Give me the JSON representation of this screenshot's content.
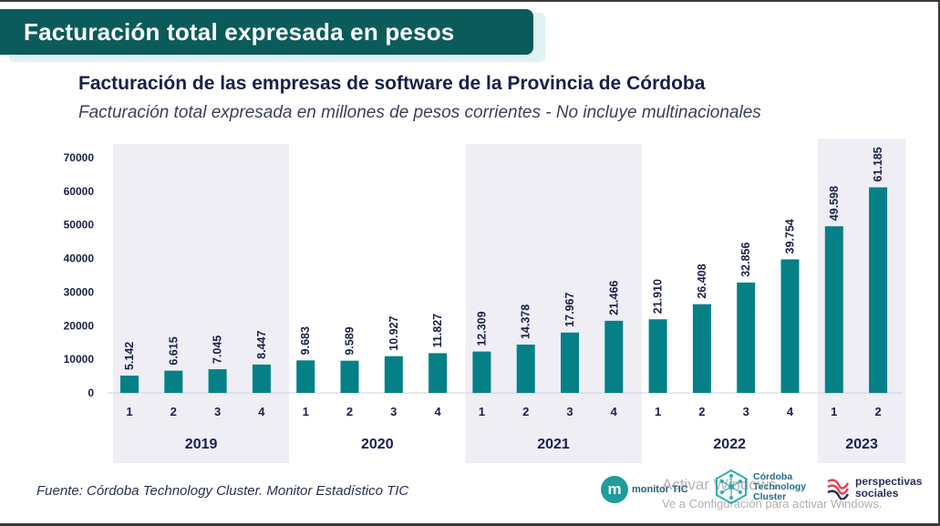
{
  "banner_title": "Facturación total expresada en pesos",
  "chart_data": {
    "type": "bar",
    "title": "Facturación de las empresas de software de la Provincia de Córdoba",
    "subtitle": "Facturación total expresada en millones de pesos corrientes - No incluye multinacionales",
    "xlabel": "",
    "ylabel": "",
    "ylim": [
      0,
      70000
    ],
    "yticks": [
      "0",
      "10000",
      "20000",
      "30000",
      "40000",
      "50000",
      "60000",
      "70000"
    ],
    "yticks_values": [
      0,
      10000,
      20000,
      30000,
      40000,
      50000,
      60000,
      70000
    ],
    "groups": [
      {
        "label": "2019",
        "shaded": true,
        "quarters": [
          "1",
          "2",
          "3",
          "4"
        ],
        "values": [
          5142,
          6615,
          7045,
          8447
        ],
        "labels": [
          "5.142",
          "6.615",
          "7.045",
          "8.447"
        ]
      },
      {
        "label": "2020",
        "shaded": false,
        "quarters": [
          "1",
          "2",
          "3",
          "4"
        ],
        "values": [
          9683,
          9589,
          10927,
          11827
        ],
        "labels": [
          "9.683",
          "9.589",
          "10.927",
          "11.827"
        ]
      },
      {
        "label": "2021",
        "shaded": true,
        "quarters": [
          "1",
          "2",
          "3",
          "4"
        ],
        "values": [
          12309,
          14378,
          17967,
          21466
        ],
        "labels": [
          "12.309",
          "14.378",
          "17.967",
          "21.466"
        ]
      },
      {
        "label": "2022",
        "shaded": false,
        "quarters": [
          "1",
          "2",
          "3",
          "4"
        ],
        "values": [
          21910,
          26408,
          32856,
          39754
        ],
        "labels": [
          "21.910",
          "26.408",
          "32.856",
          "39.754"
        ]
      },
      {
        "label": "2023",
        "shaded": true,
        "quarters": [
          "1",
          "2"
        ],
        "values": [
          49598,
          61185
        ],
        "labels": [
          "49.598",
          "61.185"
        ]
      }
    ],
    "bar_color": "#058086",
    "shade_color": "#eeeef4",
    "legend": "none"
  },
  "source": "Fuente: Córdoba Technology Cluster. Monitor Estadístico TIC",
  "logos": {
    "monitor_letter": "m",
    "monitor_text": "monitor TIC",
    "cluster_text_1": "Córdoba",
    "cluster_text_2": "Technology",
    "cluster_text_3": "Cluster",
    "persp_text_1": "perspectivas",
    "persp_text_2": "sociales"
  },
  "watermark": {
    "line1": "Activar Windows",
    "line2": "Ve a Configuración para activar Windows."
  }
}
